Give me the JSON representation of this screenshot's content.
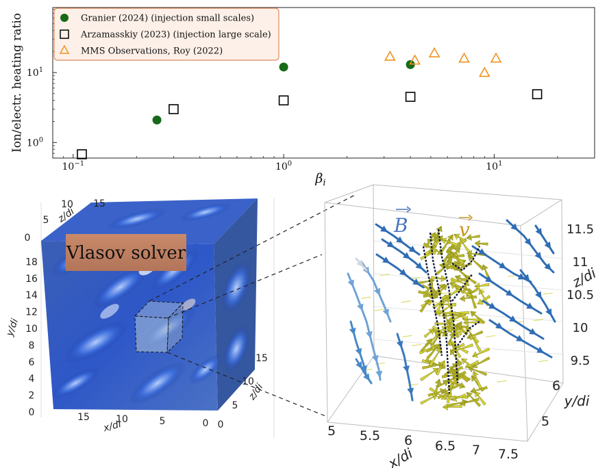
{
  "chart_data": {
    "type": "scatter",
    "xlabel": "β",
    "xlabel_sub": "i",
    "ylabel": "Ion/electr. heating ratio",
    "xscale": "log",
    "yscale": "log",
    "xlim": [
      0.08,
      30
    ],
    "ylim": [
      0.6,
      85
    ],
    "x_ticks": [
      {
        "value": 0.1,
        "base": "10",
        "exp": "−1"
      },
      {
        "value": 1,
        "base": "10",
        "exp": "0"
      },
      {
        "value": 10,
        "base": "10",
        "exp": "1"
      }
    ],
    "y_ticks": [
      {
        "value": 1,
        "base": "10",
        "exp": "0"
      },
      {
        "value": 10,
        "base": "10",
        "exp": "1"
      }
    ],
    "legend_position": "top-left",
    "series": [
      {
        "name": "Granier (2024) (injection small scales)",
        "marker": "circle",
        "color": "#176a17",
        "points": [
          [
            0.25,
            2.1
          ],
          [
            1.0,
            12.0
          ],
          [
            4.0,
            13.0
          ]
        ]
      },
      {
        "name": "Arzamasskiy (2023) (injection large scale)",
        "marker": "square",
        "color": "#000000",
        "points": [
          [
            0.11,
            0.68
          ],
          [
            0.3,
            3.0
          ],
          [
            1.0,
            4.0
          ],
          [
            4.0,
            4.5
          ],
          [
            16.0,
            4.9
          ]
        ]
      },
      {
        "name": "MMS Observations, Roy (2022)",
        "marker": "triangle",
        "color": "#f0921e",
        "points": [
          [
            3.2,
            17.0
          ],
          [
            4.2,
            15.0
          ],
          [
            5.2,
            19.0
          ],
          [
            7.2,
            16.0
          ],
          [
            9.0,
            10.0
          ],
          [
            10.2,
            16.0
          ]
        ]
      }
    ]
  },
  "panels": {
    "left_label": "Vlasov solver",
    "left_axes": {
      "x_label": "x/di",
      "x_ticks": [
        "15",
        "10",
        "5",
        "0"
      ],
      "y_label": "y/di",
      "y_ticks": [
        "0",
        "2",
        "4",
        "6",
        "8",
        "10",
        "12",
        "14",
        "16",
        "18"
      ],
      "z_top_label": "z/di",
      "z_top_ticks": [
        "0",
        "5",
        "10",
        "15"
      ],
      "z_side_label": "z/di",
      "z_side_ticks": [
        "0",
        "5",
        "10",
        "15"
      ]
    },
    "right_vectors": {
      "b_label": "B",
      "v_label": "v",
      "b_color": "#4a74bd",
      "v_color": "#c9971f"
    },
    "right_axes": {
      "x_label": "x/di",
      "x_ticks": [
        "5",
        "5.5",
        "6",
        "6.5",
        "7",
        "7.5"
      ],
      "y_label": "y/di",
      "y_ticks": [
        "5",
        "6"
      ],
      "z_label": "z/di",
      "z_ticks": [
        "9.5",
        "10",
        "10.5",
        "11",
        "11.5"
      ]
    }
  }
}
